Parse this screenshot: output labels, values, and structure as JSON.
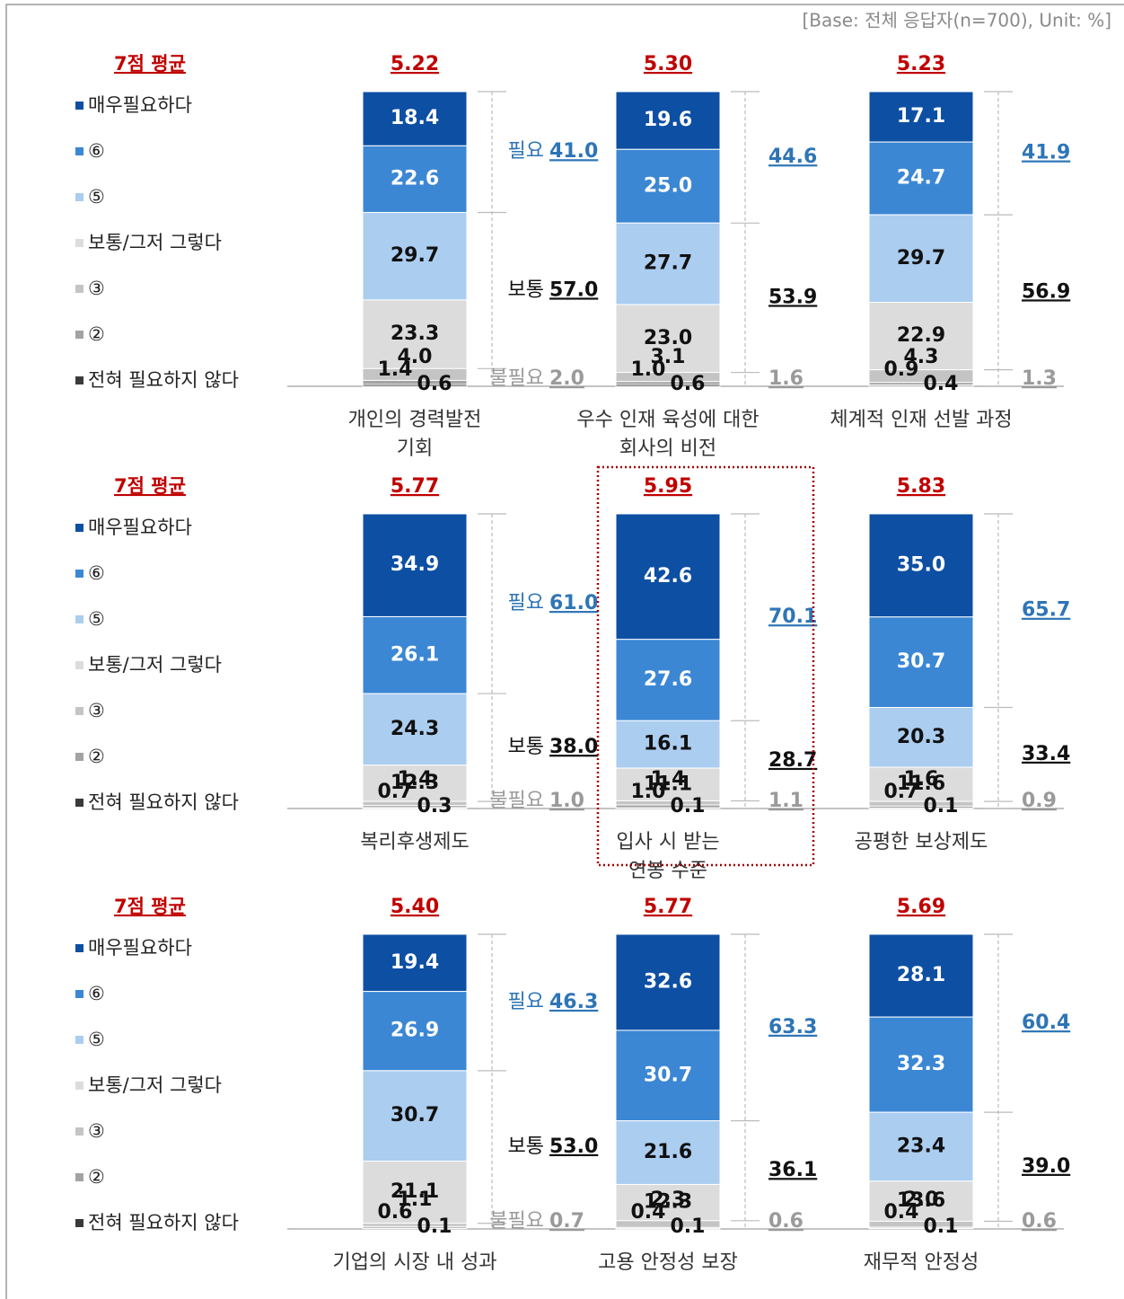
{
  "note": "[Base: 전체 응답자(n=700), Unit: %]",
  "average_caption": "7점 평균",
  "group_names": [
    "필요",
    "보통",
    "불필요"
  ],
  "series": [
    {
      "name": "매우필요하다",
      "color": "#0d4fa3"
    },
    {
      "name": "⑥",
      "color": "#3b87d4"
    },
    {
      "name": "⑤",
      "color": "#abcdf0"
    },
    {
      "name": "보통/그저 그렇다",
      "color": "#dcdcdc"
    },
    {
      "name": "③",
      "color": "#c4c4c4"
    },
    {
      "name": "②",
      "color": "#a3a3a3"
    },
    {
      "name": "전혀 필요하지 않다",
      "color": "#3a3a3a"
    }
  ],
  "chart_data": [
    {
      "type": "bar",
      "stacked": true,
      "title_lines": [
        "개인의 경력발전",
        "기회"
      ],
      "average": 5.22,
      "average_label": "5.22",
      "ylim": [
        0,
        100
      ],
      "values": [
        18.4,
        22.6,
        29.7,
        23.3,
        4.0,
        1.4,
        0.6
      ],
      "value_labels": [
        "18.4",
        "22.6",
        "29.7",
        "23.3",
        "4.0",
        "1.4",
        "0.6"
      ],
      "sums": [
        41.0,
        57.0,
        2.0
      ],
      "sum_labels": [
        "41.0",
        "57.0",
        "2.0"
      ]
    },
    {
      "type": "bar",
      "stacked": true,
      "title_lines": [
        "우수 인재 육성에 대한",
        "회사의 비전"
      ],
      "average": 5.3,
      "average_label": "5.30",
      "ylim": [
        0,
        100
      ],
      "values": [
        19.6,
        25.0,
        27.7,
        23.0,
        3.1,
        1.0,
        0.6
      ],
      "value_labels": [
        "19.6",
        "25.0",
        "27.7",
        "23.0",
        "3.1",
        "1.0",
        "0.6"
      ],
      "sums": [
        44.6,
        53.9,
        1.6
      ],
      "sum_labels": [
        "44.6",
        "53.9",
        "1.6"
      ]
    },
    {
      "type": "bar",
      "stacked": true,
      "title_lines": [
        "체계적 인재 선발 과정"
      ],
      "average": 5.23,
      "average_label": "5.23",
      "ylim": [
        0,
        100
      ],
      "values": [
        17.1,
        24.7,
        29.7,
        22.9,
        4.3,
        0.9,
        0.4
      ],
      "value_labels": [
        "17.1",
        "24.7",
        "29.7",
        "22.9",
        "4.3",
        "0.9",
        "0.4"
      ],
      "sums": [
        41.9,
        56.9,
        1.3
      ],
      "sum_labels": [
        "41.9",
        "56.9",
        "1.3"
      ]
    },
    {
      "type": "bar",
      "stacked": true,
      "title_lines": [
        "복리후생제도"
      ],
      "average": 5.77,
      "average_label": "5.77",
      "ylim": [
        0,
        100
      ],
      "values": [
        34.9,
        26.1,
        24.3,
        12.3,
        1.4,
        0.7,
        0.3
      ],
      "value_labels": [
        "34.9",
        "26.1",
        "24.3",
        "12.3",
        "1.4",
        "0.7",
        "0.3"
      ],
      "sums": [
        61.0,
        38.0,
        1.0
      ],
      "sum_labels": [
        "61.0",
        "38.0",
        "1.0"
      ]
    },
    {
      "type": "bar",
      "stacked": true,
      "highlight": true,
      "title_lines": [
        "입사 시 받는",
        "연봉 수준"
      ],
      "average": 5.95,
      "average_label": "5.95",
      "ylim": [
        0,
        100
      ],
      "values": [
        42.6,
        27.6,
        16.1,
        11.1,
        1.4,
        1.0,
        0.1
      ],
      "value_labels": [
        "42.6",
        "27.6",
        "16.1",
        "11.1",
        "1.4",
        "1.0",
        "0.1"
      ],
      "sums": [
        70.1,
        28.7,
        1.1
      ],
      "sum_labels": [
        "70.1",
        "28.7",
        "1.1"
      ]
    },
    {
      "type": "bar",
      "stacked": true,
      "title_lines": [
        "공평한 보상제도"
      ],
      "average": 5.83,
      "average_label": "5.83",
      "ylim": [
        0,
        100
      ],
      "values": [
        35.0,
        30.7,
        20.3,
        11.6,
        1.6,
        0.7,
        0.1
      ],
      "value_labels": [
        "35.0",
        "30.7",
        "20.3",
        "11.6",
        "1.6",
        "0.7",
        "0.1"
      ],
      "sums": [
        65.7,
        33.4,
        0.9
      ],
      "sum_labels": [
        "65.7",
        "33.4",
        "0.9"
      ]
    },
    {
      "type": "bar",
      "stacked": true,
      "title_lines": [
        "기업의 시장 내 성과"
      ],
      "average": 5.4,
      "average_label": "5.40",
      "ylim": [
        0,
        100
      ],
      "values": [
        19.4,
        26.9,
        30.7,
        21.1,
        1.1,
        0.6,
        0.1
      ],
      "value_labels": [
        "19.4",
        "26.9",
        "30.7",
        "21.1",
        "1.1",
        "0.6",
        "0.1"
      ],
      "sums": [
        46.3,
        53.0,
        0.7
      ],
      "sum_labels": [
        "46.3",
        "53.0",
        "0.7"
      ]
    },
    {
      "type": "bar",
      "stacked": true,
      "title_lines": [
        "고용 안정성 보장"
      ],
      "average": 5.77,
      "average_label": "5.77",
      "ylim": [
        0,
        100
      ],
      "values": [
        32.6,
        30.7,
        21.6,
        12.3,
        2.3,
        0.4,
        0.1
      ],
      "value_labels": [
        "32.6",
        "30.7",
        "21.6",
        "12.3",
        "2.3",
        "0.4",
        "0.1"
      ],
      "sums": [
        63.3,
        36.1,
        0.6
      ],
      "sum_labels": [
        "63.3",
        "36.1",
        "0.6"
      ]
    },
    {
      "type": "bar",
      "stacked": true,
      "title_lines": [
        "재무적 안정성"
      ],
      "average": 5.69,
      "average_label": "5.69",
      "ylim": [
        0,
        100
      ],
      "values": [
        28.1,
        32.3,
        23.4,
        13.6,
        2.0,
        0.4,
        0.1
      ],
      "value_labels": [
        "28.1",
        "32.3",
        "23.4",
        "13.6",
        "2.0",
        "0.4",
        "0.1"
      ],
      "sums": [
        60.4,
        39.0,
        0.6
      ],
      "sum_labels": [
        "60.4",
        "39.0",
        "0.6"
      ]
    }
  ]
}
